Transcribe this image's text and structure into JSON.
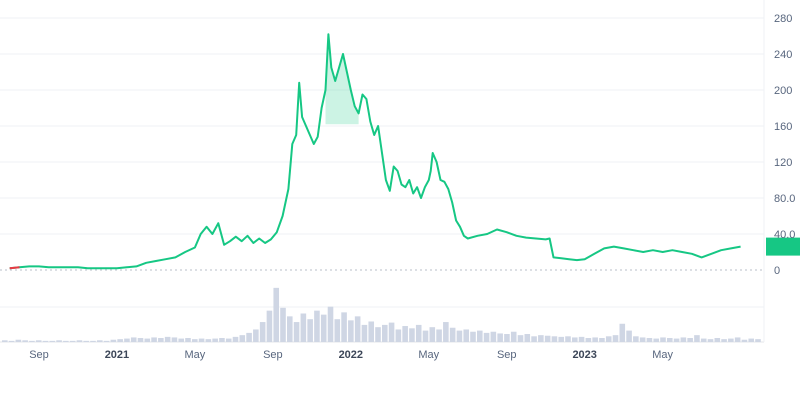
{
  "chart_data": {
    "type": "line",
    "title": "",
    "xlabel": "",
    "ylabel": "",
    "ylim": [
      0,
      280
    ],
    "y_ticks": [
      0,
      40,
      80,
      120,
      160,
      200,
      240,
      280
    ],
    "y_tick_labels": [
      "0",
      "40.0",
      "80.0",
      "120",
      "160",
      "200",
      "240",
      "280"
    ],
    "x_ticks": [
      {
        "label": "Sep",
        "t": 0.0,
        "bold": false
      },
      {
        "label": "2021",
        "t": 4.0,
        "bold": true
      },
      {
        "label": "May",
        "t": 8.0,
        "bold": false
      },
      {
        "label": "Sep",
        "t": 12.0,
        "bold": false
      },
      {
        "label": "2022",
        "t": 16.0,
        "bold": true
      },
      {
        "label": "May",
        "t": 20.0,
        "bold": false
      },
      {
        "label": "Sep",
        "t": 24.0,
        "bold": false
      },
      {
        "label": "2023",
        "t": 28.0,
        "bold": true
      },
      {
        "label": "May",
        "t": 32.0,
        "bold": false
      }
    ],
    "series": [
      {
        "color": "#16c784",
        "points": [
          [
            -1.5,
            2
          ],
          [
            -1.0,
            3
          ],
          [
            -0.5,
            4
          ],
          [
            0.0,
            4
          ],
          [
            0.5,
            3
          ],
          [
            1.0,
            3
          ],
          [
            1.5,
            3
          ],
          [
            2.0,
            3
          ],
          [
            2.5,
            2
          ],
          [
            3.0,
            2
          ],
          [
            3.5,
            2
          ],
          [
            4.0,
            2
          ],
          [
            4.5,
            3
          ],
          [
            5.0,
            4
          ],
          [
            5.5,
            8
          ],
          [
            6.0,
            10
          ],
          [
            6.5,
            12
          ],
          [
            7.0,
            14
          ],
          [
            7.5,
            20
          ],
          [
            8.0,
            25
          ],
          [
            8.3,
            40
          ],
          [
            8.6,
            48
          ],
          [
            8.9,
            40
          ],
          [
            9.2,
            52
          ],
          [
            9.5,
            28
          ],
          [
            9.8,
            32
          ],
          [
            10.1,
            37
          ],
          [
            10.4,
            32
          ],
          [
            10.7,
            38
          ],
          [
            11.0,
            30
          ],
          [
            11.3,
            35
          ],
          [
            11.6,
            30
          ],
          [
            11.9,
            34
          ],
          [
            12.2,
            42
          ],
          [
            12.5,
            60
          ],
          [
            12.8,
            90
          ],
          [
            13.0,
            140
          ],
          [
            13.2,
            150
          ],
          [
            13.35,
            208
          ],
          [
            13.5,
            170
          ],
          [
            13.7,
            160
          ],
          [
            13.9,
            150
          ],
          [
            14.1,
            140
          ],
          [
            14.3,
            148
          ],
          [
            14.5,
            180
          ],
          [
            14.7,
            200
          ],
          [
            14.85,
            262
          ],
          [
            15.0,
            225
          ],
          [
            15.2,
            210
          ],
          [
            15.4,
            225
          ],
          [
            15.6,
            240
          ],
          [
            15.8,
            220
          ],
          [
            16.0,
            200
          ],
          [
            16.2,
            182
          ],
          [
            16.4,
            174
          ],
          [
            16.6,
            195
          ],
          [
            16.8,
            190
          ],
          [
            17.0,
            165
          ],
          [
            17.2,
            150
          ],
          [
            17.4,
            160
          ],
          [
            17.6,
            130
          ],
          [
            17.8,
            100
          ],
          [
            18.0,
            88
          ],
          [
            18.2,
            115
          ],
          [
            18.4,
            110
          ],
          [
            18.6,
            95
          ],
          [
            18.8,
            92
          ],
          [
            19.0,
            100
          ],
          [
            19.2,
            85
          ],
          [
            19.4,
            92
          ],
          [
            19.6,
            80
          ],
          [
            19.8,
            92
          ],
          [
            20.0,
            100
          ],
          [
            20.1,
            110
          ],
          [
            20.2,
            130
          ],
          [
            20.4,
            120
          ],
          [
            20.6,
            100
          ],
          [
            20.8,
            98
          ],
          [
            21.0,
            90
          ],
          [
            21.2,
            75
          ],
          [
            21.4,
            55
          ],
          [
            21.6,
            48
          ],
          [
            21.8,
            38
          ],
          [
            22.0,
            35
          ],
          [
            22.5,
            38
          ],
          [
            23.0,
            40
          ],
          [
            23.5,
            45
          ],
          [
            24.0,
            42
          ],
          [
            24.5,
            38
          ],
          [
            25.0,
            36
          ],
          [
            25.5,
            35
          ],
          [
            26.0,
            34
          ],
          [
            26.2,
            35
          ],
          [
            26.4,
            14
          ],
          [
            26.8,
            13
          ],
          [
            27.2,
            12
          ],
          [
            27.6,
            11
          ],
          [
            28.0,
            12
          ],
          [
            28.5,
            18
          ],
          [
            29.0,
            24
          ],
          [
            29.5,
            26
          ],
          [
            30.0,
            24
          ],
          [
            30.5,
            22
          ],
          [
            31.0,
            20
          ],
          [
            31.5,
            22
          ],
          [
            32.0,
            20
          ],
          [
            32.5,
            22
          ],
          [
            33.0,
            20
          ],
          [
            33.5,
            18
          ],
          [
            34.0,
            14
          ],
          [
            34.5,
            18
          ],
          [
            35.0,
            22
          ],
          [
            35.5,
            24
          ],
          [
            36.0,
            26
          ]
        ]
      }
    ],
    "volume": [
      0.03,
      0.02,
      0.04,
      0.03,
      0.02,
      0.03,
      0.02,
      0.02,
      0.03,
      0.02,
      0.02,
      0.03,
      0.02,
      0.02,
      0.03,
      0.02,
      0.04,
      0.05,
      0.06,
      0.08,
      0.07,
      0.06,
      0.08,
      0.07,
      0.09,
      0.08,
      0.06,
      0.07,
      0.05,
      0.06,
      0.05,
      0.06,
      0.07,
      0.06,
      0.09,
      0.12,
      0.16,
      0.22,
      0.35,
      0.55,
      0.95,
      0.6,
      0.45,
      0.35,
      0.5,
      0.4,
      0.55,
      0.48,
      0.62,
      0.4,
      0.52,
      0.38,
      0.45,
      0.3,
      0.36,
      0.26,
      0.3,
      0.34,
      0.22,
      0.28,
      0.24,
      0.3,
      0.2,
      0.26,
      0.22,
      0.35,
      0.25,
      0.2,
      0.22,
      0.18,
      0.2,
      0.16,
      0.18,
      0.15,
      0.14,
      0.18,
      0.12,
      0.14,
      0.1,
      0.12,
      0.11,
      0.1,
      0.09,
      0.1,
      0.08,
      0.09,
      0.07,
      0.08,
      0.07,
      0.1,
      0.12,
      0.32,
      0.2,
      0.1,
      0.08,
      0.07,
      0.06,
      0.08,
      0.07,
      0.06,
      0.08,
      0.07,
      0.12,
      0.06,
      0.05,
      0.07,
      0.05,
      0.06,
      0.08,
      0.04,
      0.06,
      0.05
    ]
  }
}
